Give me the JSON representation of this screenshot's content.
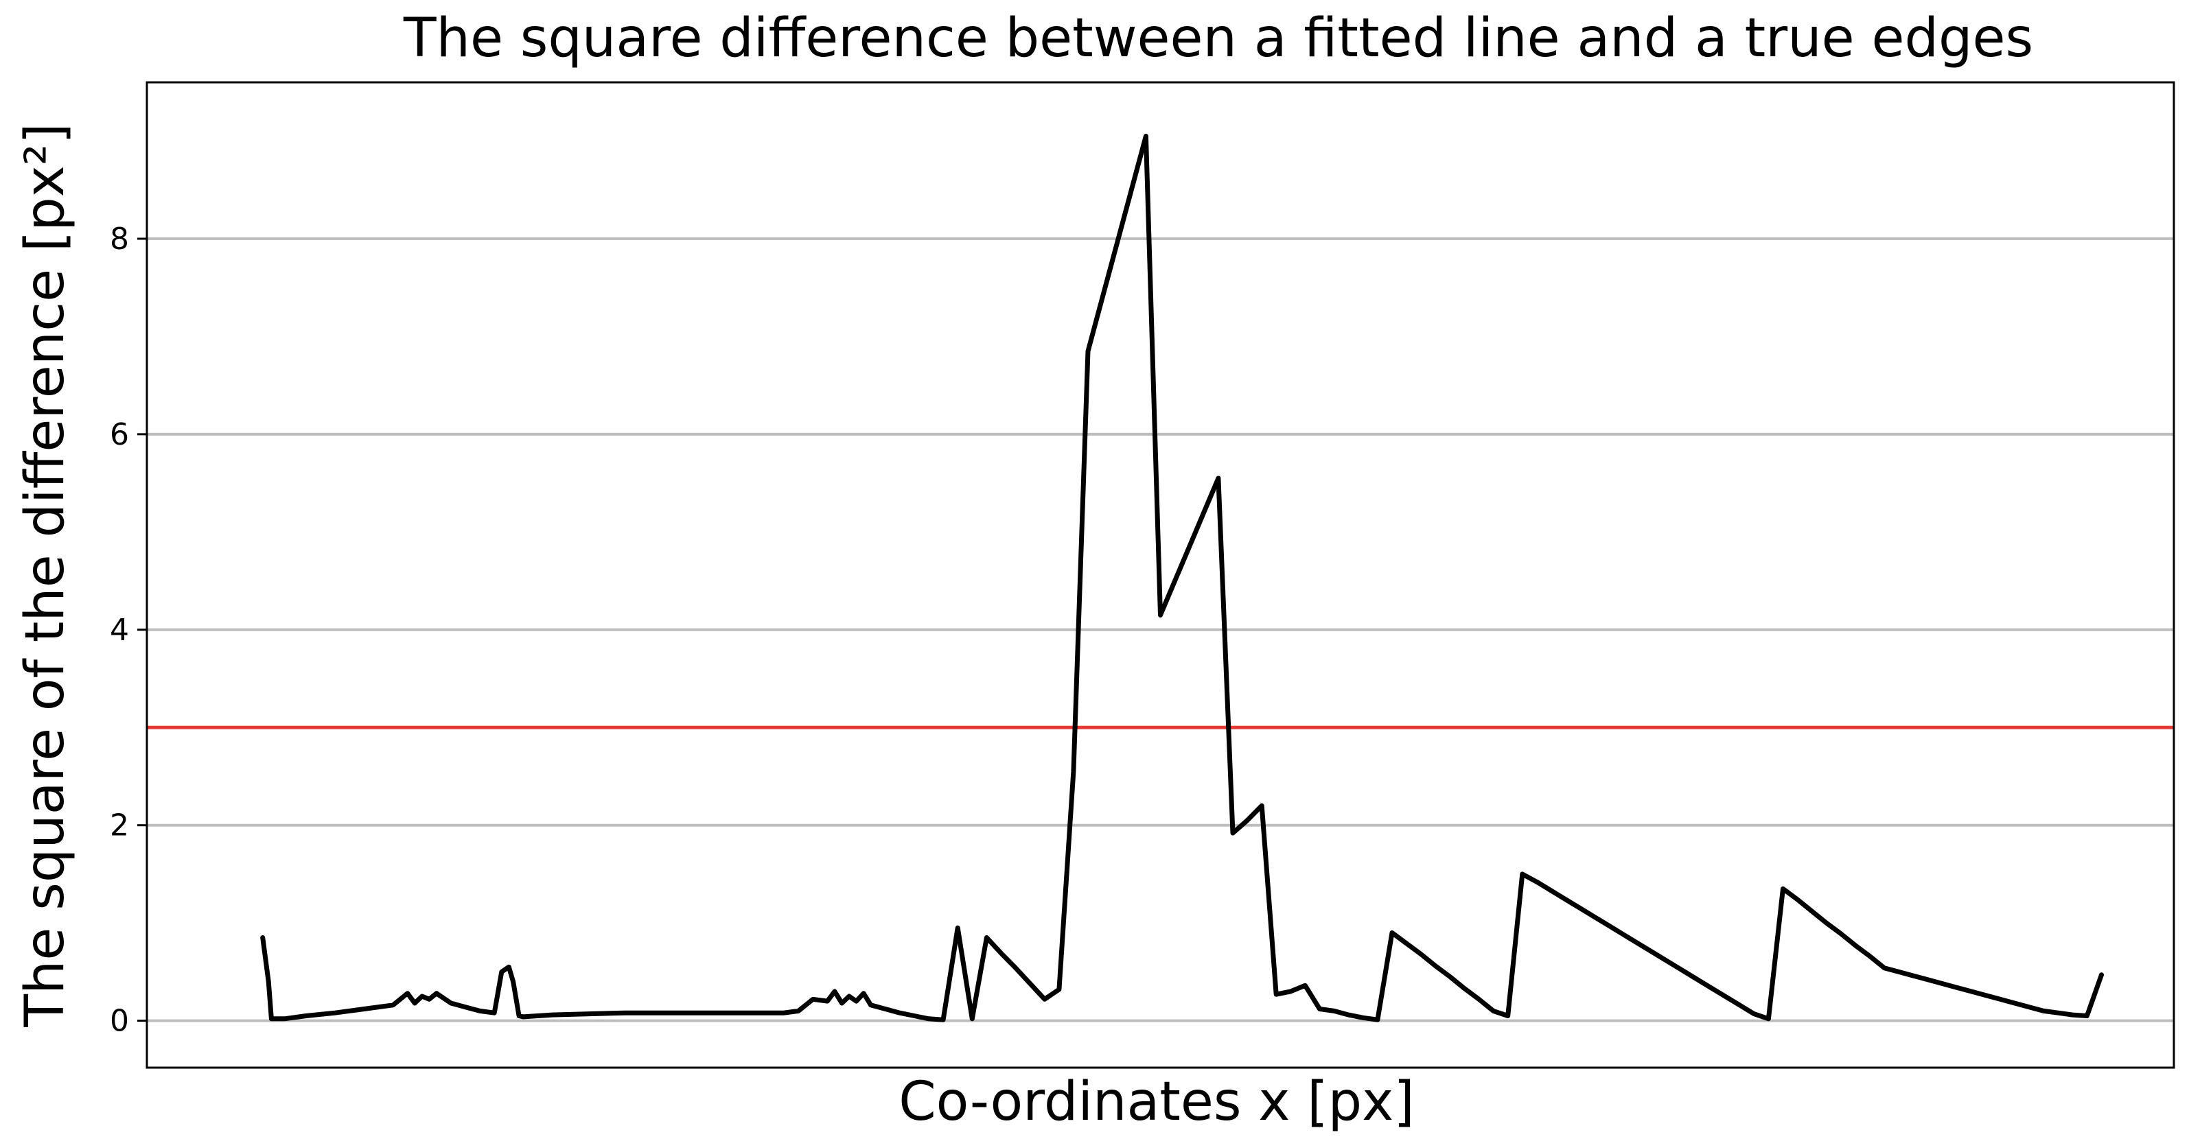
{
  "chart_data": {
    "type": "line",
    "title": "The square difference between a fitted line and a true edges",
    "xlabel": "Co-ordinates x [px]",
    "ylabel": "The square of the difference [px²]",
    "xlim": [
      -8,
      132
    ],
    "ylim": [
      -0.48,
      9.6
    ],
    "yticks": [
      0,
      2,
      4,
      6,
      8
    ],
    "grid": "horizontal",
    "series_color": "#000000",
    "threshold": {
      "value": 3.0,
      "color": "#e53935"
    },
    "series": [
      {
        "x": [
          0,
          0.4,
          0.6,
          1.5,
          3,
          5,
          7,
          9,
          10,
          10.5,
          11,
          11.5,
          12,
          13,
          14,
          15,
          16,
          16.5,
          17,
          17.3,
          17.7,
          18,
          20,
          25,
          30,
          35,
          36,
          37,
          38,
          39,
          39.5,
          40,
          40.5,
          41,
          41.5,
          42,
          43,
          44,
          45,
          46,
          47,
          48,
          49,
          50,
          51,
          52,
          53,
          54,
          55,
          56,
          57,
          58,
          59,
          60,
          61,
          62,
          63,
          64,
          65,
          66,
          67,
          68,
          69,
          70,
          71,
          72,
          73,
          74,
          75,
          76,
          77,
          78,
          79,
          80,
          81,
          82,
          83,
          84,
          85,
          86,
          87,
          88,
          89,
          90,
          91,
          92,
          93,
          94,
          95,
          96,
          97,
          98,
          99,
          100,
          101,
          102,
          103,
          104,
          105,
          106,
          107,
          108,
          109,
          110,
          111,
          112,
          113,
          114,
          115,
          116,
          117,
          118,
          119,
          120,
          121,
          122,
          123,
          124,
          125,
          126,
          127
        ],
        "y": [
          0.85,
          0.4,
          0.02,
          0.02,
          0.05,
          0.08,
          0.12,
          0.16,
          0.28,
          0.18,
          0.25,
          0.22,
          0.28,
          0.18,
          0.14,
          0.1,
          0.08,
          0.5,
          0.55,
          0.4,
          0.05,
          0.04,
          0.06,
          0.08,
          0.08,
          0.08,
          0.08,
          0.1,
          0.22,
          0.2,
          0.3,
          0.18,
          0.25,
          0.2,
          0.28,
          0.16,
          0.12,
          0.08,
          0.05,
          0.02,
          0.01,
          0.95,
          0.02,
          0.85,
          0.69,
          0.54,
          0.38,
          0.22,
          0.32,
          2.55,
          6.85,
          7.4,
          7.95,
          8.5,
          9.05,
          4.15,
          4.5,
          4.85,
          5.2,
          5.55,
          1.92,
          2.05,
          2.2,
          0.27,
          0.3,
          0.36,
          0.12,
          0.1,
          0.06,
          0.03,
          0.01,
          0.9,
          0.79,
          0.68,
          0.56,
          0.45,
          0.33,
          0.22,
          0.1,
          0.05,
          1.5,
          1.42,
          1.33,
          1.24,
          1.15,
          1.06,
          0.97,
          0.88,
          0.79,
          0.7,
          0.61,
          0.52,
          0.43,
          0.34,
          0.25,
          0.16,
          0.07,
          0.02,
          1.35,
          1.24,
          1.12,
          1.0,
          0.89,
          0.77,
          0.66,
          0.54,
          0.5,
          0.46,
          0.42,
          0.38,
          0.34,
          0.3,
          0.26,
          0.22,
          0.18,
          0.14,
          0.1,
          0.08,
          0.06,
          0.05,
          0.47
        ]
      }
    ]
  }
}
